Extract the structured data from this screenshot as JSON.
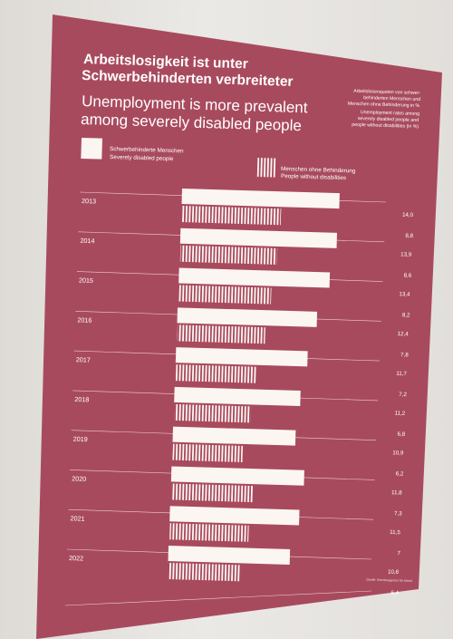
{
  "title_de": [
    "Arbeitslosigkeit ist unter",
    "Schwerbehinderten verbreiteter"
  ],
  "title_en": [
    "Unemployment is more prevalent",
    "among severely disabled people"
  ],
  "note": [
    "Arbeitslosenquoten von schwer-",
    "behinderten Menschen und",
    "Menschen ohne Behinderung in %",
    "Unemployment rates among",
    "severely disabled people and",
    "people without disabilities (in %)"
  ],
  "legend": [
    {
      "de": "Schwerbehinderte Menschen",
      "en": "Severely disabled people"
    },
    {
      "de": "Menschen ohne Behinderung",
      "en": "People without disabilities"
    }
  ],
  "source": "Quelle: Bundesagentur für Arbeit",
  "colors": {
    "poster": "#a84a5e",
    "bar": "#fbf6f2"
  },
  "chart_data": {
    "type": "bar",
    "orientation": "horizontal",
    "categories": [
      "2013",
      "2014",
      "2015",
      "2016",
      "2017",
      "2018",
      "2019",
      "2020",
      "2021",
      "2022"
    ],
    "series": [
      {
        "name": "Schwerbehinderte Menschen / Severely disabled people",
        "values": [
          14.0,
          13.9,
          13.4,
          12.4,
          11.7,
          11.2,
          10.9,
          11.8,
          11.5,
          10.8
        ],
        "fill": "solid"
      },
      {
        "name": "Menschen ohne Behinderung / People without disabilities",
        "values": [
          8.8,
          8.6,
          8.2,
          7.8,
          7.2,
          6.8,
          6.2,
          7.3,
          7.0,
          6.4
        ],
        "fill": "striped"
      }
    ],
    "value_labels": [
      [
        "14,0",
        "8,8"
      ],
      [
        "13,9",
        "8,6"
      ],
      [
        "13,4",
        "8,2"
      ],
      [
        "12,4",
        "7,8"
      ],
      [
        "11,7",
        "7,2"
      ],
      [
        "11,2",
        "6,8"
      ],
      [
        "10,9",
        "6,2"
      ],
      [
        "11,8",
        "7,3"
      ],
      [
        "11,5",
        "7"
      ],
      [
        "10,8",
        "6,4"
      ]
    ],
    "xlim": [
      0,
      14
    ],
    "legend_position": "top-left"
  }
}
